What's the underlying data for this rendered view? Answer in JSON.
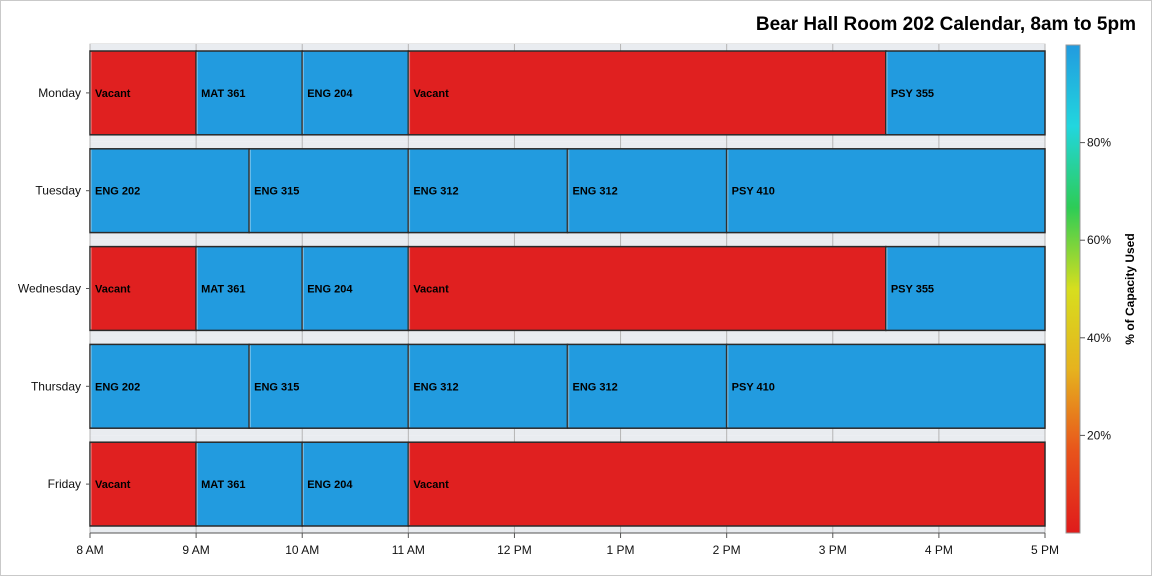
{
  "chart_data": {
    "type": "bar",
    "subtype": "horizontal-timeline",
    "title": "Bear Hall Room 202 Calendar, 8am to 5pm",
    "x_axis": {
      "range": [
        8,
        17
      ],
      "ticks": [
        {
          "value": 8,
          "label": "8 AM"
        },
        {
          "value": 9,
          "label": "9 AM"
        },
        {
          "value": 10,
          "label": "10 AM"
        },
        {
          "value": 11,
          "label": "11 AM"
        },
        {
          "value": 12,
          "label": "12 PM"
        },
        {
          "value": 13,
          "label": "1 PM"
        },
        {
          "value": 14,
          "label": "2 PM"
        },
        {
          "value": 15,
          "label": "3 PM"
        },
        {
          "value": 16,
          "label": "4 PM"
        },
        {
          "value": 17,
          "label": "5 PM"
        }
      ]
    },
    "categories": [
      "Monday",
      "Tuesday",
      "Wednesday",
      "Thursday",
      "Friday"
    ],
    "rows": [
      {
        "day": "Monday",
        "blocks": [
          {
            "label": "Vacant",
            "start": 8,
            "end": 9,
            "color": "#e02020"
          },
          {
            "label": "MAT 361",
            "start": 9,
            "end": 10,
            "color": "#229bdf"
          },
          {
            "label": "ENG 204",
            "start": 10,
            "end": 11,
            "color": "#229bdf"
          },
          {
            "label": "Vacant",
            "start": 11,
            "end": 15.5,
            "color": "#e02020"
          },
          {
            "label": "PSY 355",
            "start": 15.5,
            "end": 17,
            "color": "#229bdf"
          }
        ]
      },
      {
        "day": "Tuesday",
        "blocks": [
          {
            "label": "ENG 202",
            "start": 8,
            "end": 9.5,
            "color": "#229bdf"
          },
          {
            "label": "ENG 315",
            "start": 9.5,
            "end": 11,
            "color": "#229bdf"
          },
          {
            "label": "ENG 312",
            "start": 11,
            "end": 12.5,
            "color": "#229bdf"
          },
          {
            "label": "ENG 312",
            "start": 12.5,
            "end": 14,
            "color": "#229bdf"
          },
          {
            "label": "PSY 410",
            "start": 14,
            "end": 17,
            "color": "#229bdf"
          }
        ]
      },
      {
        "day": "Wednesday",
        "blocks": [
          {
            "label": "Vacant",
            "start": 8,
            "end": 9,
            "color": "#e02020"
          },
          {
            "label": "MAT 361",
            "start": 9,
            "end": 10,
            "color": "#229bdf"
          },
          {
            "label": "ENG 204",
            "start": 10,
            "end": 11,
            "color": "#229bdf"
          },
          {
            "label": "Vacant",
            "start": 11,
            "end": 15.5,
            "color": "#e02020"
          },
          {
            "label": "PSY 355",
            "start": 15.5,
            "end": 17,
            "color": "#229bdf"
          }
        ]
      },
      {
        "day": "Thursday",
        "blocks": [
          {
            "label": "ENG 202",
            "start": 8,
            "end": 9.5,
            "color": "#229bdf"
          },
          {
            "label": "ENG 315",
            "start": 9.5,
            "end": 11,
            "color": "#229bdf"
          },
          {
            "label": "ENG 312",
            "start": 11,
            "end": 12.5,
            "color": "#229bdf"
          },
          {
            "label": "ENG 312",
            "start": 12.5,
            "end": 14,
            "color": "#229bdf"
          },
          {
            "label": "PSY 410",
            "start": 14,
            "end": 17,
            "color": "#229bdf"
          }
        ]
      },
      {
        "day": "Friday",
        "blocks": [
          {
            "label": "Vacant",
            "start": 8,
            "end": 9,
            "color": "#e02020"
          },
          {
            "label": "MAT 361",
            "start": 9,
            "end": 10,
            "color": "#229bdf"
          },
          {
            "label": "ENG 204",
            "start": 10,
            "end": 11,
            "color": "#229bdf"
          },
          {
            "label": "Vacant",
            "start": 11,
            "end": 17,
            "color": "#e02020"
          }
        ]
      }
    ],
    "colorbar": {
      "label": "% of Capacity Used",
      "range": [
        0,
        100
      ],
      "ticks": [
        {
          "value": 20,
          "label": "20%"
        },
        {
          "value": 40,
          "label": "40%"
        },
        {
          "value": 60,
          "label": "60%"
        },
        {
          "value": 80,
          "label": "80%"
        }
      ],
      "stops": [
        "#e01b1b",
        "#e8531b",
        "#e6b21e",
        "#d7de1e",
        "#2dcc56",
        "#22d6de",
        "#229bdf"
      ]
    },
    "grid": true,
    "legend": "right"
  }
}
